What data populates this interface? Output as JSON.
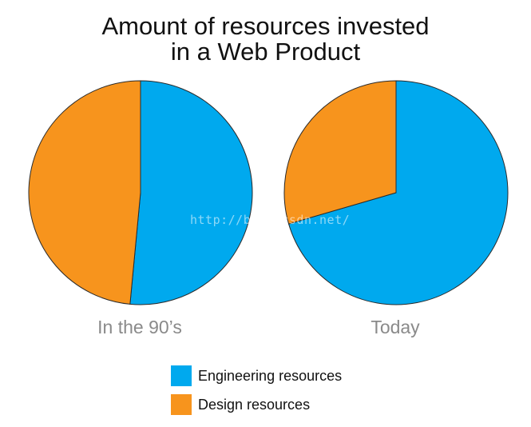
{
  "chart_data": {
    "type": "pie",
    "title": "Amount of resources invested in a Web Product",
    "title_lines": [
      "Amount of resources invested",
      "in a Web Product"
    ],
    "legend_position": "bottom",
    "legend": [
      {
        "label": "Engineering resources",
        "color": "#00a9ee"
      },
      {
        "label": "Design resources",
        "color": "#f7941d"
      }
    ],
    "pies": [
      {
        "label": "In the 90’s",
        "slices": [
          {
            "name": "Engineering resources",
            "value": 51.5,
            "color": "#00a9ee"
          },
          {
            "name": "Design resources",
            "value": 48.5,
            "color": "#f7941d"
          }
        ]
      },
      {
        "label": "Today",
        "slices": [
          {
            "name": "Engineering resources",
            "value": 70.5,
            "color": "#00a9ee"
          },
          {
            "name": "Design resources",
            "value": 29.5,
            "color": "#f7941d"
          }
        ]
      }
    ]
  },
  "watermark": "http://blog.csdn.net/"
}
